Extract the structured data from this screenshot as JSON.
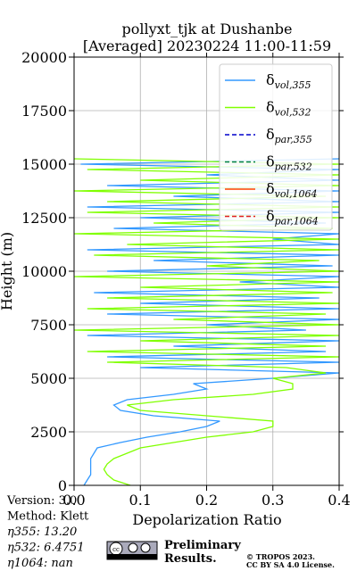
{
  "chart_data": {
    "type": "profile",
    "title": [
      "pollyxt_tjk at Dushanbe",
      "[Averaged] 20230224 11:00-11:59"
    ],
    "xlabel": "Depolarization Ratio",
    "ylabel": "Height (m)",
    "xlim": [
      0,
      0.4
    ],
    "xticks": [
      {
        "value": 0,
        "label": "0.0"
      },
      0.1,
      0.2,
      0.3,
      0.4
    ],
    "ylim": [
      0,
      20000
    ],
    "yticks": [
      0,
      2500,
      5000,
      7500,
      10000,
      12500,
      15000,
      17500,
      20000
    ],
    "grid": true,
    "legend": "upper right",
    "y": [
      0,
      250,
      500,
      750,
      1000,
      1250,
      1500,
      1750,
      2000,
      2250,
      2500,
      2750,
      3000,
      3250,
      3500,
      3750,
      4000,
      4250,
      4500,
      4750,
      5000,
      5250,
      5500,
      5750,
      6000,
      6250,
      6500,
      6750,
      7000,
      7250,
      7500,
      7750,
      8000,
      8250,
      8500,
      8750,
      9000,
      9250,
      9500,
      9750,
      10000,
      10250,
      10500,
      10750,
      11000,
      11250,
      11500,
      11750,
      12000,
      12250,
      12500,
      12750,
      13000,
      13250,
      13500,
      13750,
      14000,
      14250,
      14500,
      14750,
      15000,
      15250
    ],
    "series": [
      {
        "name": "δvol,355",
        "color": "#3399ff",
        "dash": false,
        "values": [
          0.015,
          0.02,
          0.025,
          0.025,
          0.025,
          0.025,
          0.03,
          0.035,
          0.07,
          0.11,
          0.16,
          0.2,
          0.22,
          0.12,
          0.07,
          0.06,
          0.08,
          0.15,
          0.2,
          0.18,
          0.3,
          0.4,
          0.1,
          0.4,
          0.05,
          0.38,
          0.15,
          0.4,
          0.02,
          0.35,
          0.2,
          0.4,
          0.05,
          0.4,
          0.1,
          0.37,
          0.03,
          0.4,
          0.25,
          0.4,
          0.05,
          0.39,
          0.12,
          0.4,
          0.02,
          0.4,
          0.3,
          0.4,
          0.06,
          0.38,
          0.1,
          0.4,
          0.02,
          0.4,
          0.15,
          0.4,
          0.05,
          0.4,
          0.2,
          0.4,
          0.01,
          0.4
        ]
      },
      {
        "name": "δvol,532",
        "color": "#80ff00",
        "dash": false,
        "values": [
          0.085,
          0.06,
          0.05,
          0.045,
          0.05,
          0.06,
          0.08,
          0.1,
          0.15,
          0.2,
          0.27,
          0.3,
          0.3,
          0.2,
          0.1,
          0.08,
          0.15,
          0.27,
          0.33,
          0.33,
          0.3,
          0.38,
          0.32,
          0.05,
          0.4,
          0.02,
          0.38,
          0.1,
          0.4,
          0.0,
          0.4,
          0.15,
          0.38,
          0.02,
          0.4,
          0.05,
          0.39,
          0.1,
          0.4,
          0.0,
          0.4,
          0.2,
          0.37,
          0.03,
          0.4,
          0.08,
          0.4,
          0.0,
          0.39,
          0.12,
          0.4,
          0.02,
          0.4,
          0.05,
          0.38,
          0.0,
          0.4,
          0.1,
          0.4,
          0.02,
          0.4,
          0.0
        ]
      },
      {
        "name": "δpar,355",
        "color": "#0000cc",
        "dash": true,
        "values": [
          null,
          null,
          null,
          null,
          null,
          null,
          null,
          null,
          null,
          null,
          null,
          null,
          null,
          null,
          null,
          null,
          null,
          null,
          null,
          null,
          null,
          null,
          null,
          null,
          null,
          null,
          null,
          null,
          null,
          null,
          null,
          null,
          null,
          null,
          null,
          null,
          null,
          null,
          null,
          null,
          null,
          null,
          null,
          null,
          null,
          null,
          null,
          null,
          null,
          null,
          null,
          null,
          null,
          null,
          null,
          null,
          null,
          null,
          null,
          null,
          null,
          null
        ]
      },
      {
        "name": "δpar,532",
        "color": "#008040",
        "dash": true,
        "values": [
          null,
          null,
          null,
          null,
          null,
          null,
          null,
          null,
          null,
          null,
          null,
          null,
          null,
          null,
          null,
          null,
          null,
          null,
          null,
          null,
          null,
          null,
          null,
          null,
          null,
          null,
          null,
          null,
          null,
          null,
          null,
          null,
          null,
          null,
          null,
          null,
          null,
          null,
          null,
          null,
          null,
          null,
          null,
          null,
          null,
          null,
          null,
          null,
          null,
          null,
          null,
          null,
          null,
          null,
          null,
          null,
          null,
          null,
          null,
          null,
          null,
          null
        ]
      },
      {
        "name": "δvol,1064",
        "color": "#ff4500",
        "dash": false,
        "values": [
          null,
          null,
          null,
          null,
          null,
          null,
          null,
          null,
          null,
          null,
          null,
          null,
          null,
          null,
          null,
          null,
          null,
          null,
          null,
          null,
          null,
          null,
          null,
          null,
          null,
          null,
          null,
          null,
          null,
          null,
          null,
          null,
          null,
          null,
          null,
          null,
          null,
          null,
          null,
          null,
          null,
          null,
          null,
          null,
          null,
          null,
          null,
          null,
          null,
          null,
          null,
          null,
          null,
          null,
          null,
          null,
          null,
          null,
          null,
          null,
          null,
          null
        ]
      },
      {
        "name": "δpar,1064",
        "color": "#e02020",
        "dash": true,
        "values": [
          null,
          null,
          null,
          null,
          null,
          null,
          null,
          null,
          null,
          null,
          null,
          null,
          null,
          null,
          null,
          null,
          null,
          null,
          null,
          null,
          null,
          null,
          null,
          null,
          null,
          null,
          null,
          null,
          null,
          null,
          null,
          null,
          null,
          null,
          null,
          null,
          null,
          null,
          null,
          null,
          null,
          null,
          null,
          null,
          null,
          null,
          null,
          null,
          null,
          null,
          null,
          null,
          null,
          null,
          null,
          null,
          null,
          null,
          null,
          null,
          null,
          null
        ]
      }
    ]
  },
  "footer": {
    "info": [
      "Version: 3.0",
      "Method: Klett",
      "η355:  13.20",
      "η532: 6.4751",
      "η1064:    nan"
    ],
    "preliminary": [
      "Preliminary",
      "Results."
    ],
    "license": [
      "© TROPOS 2023.",
      "CC BY SA 4.0 License."
    ]
  }
}
